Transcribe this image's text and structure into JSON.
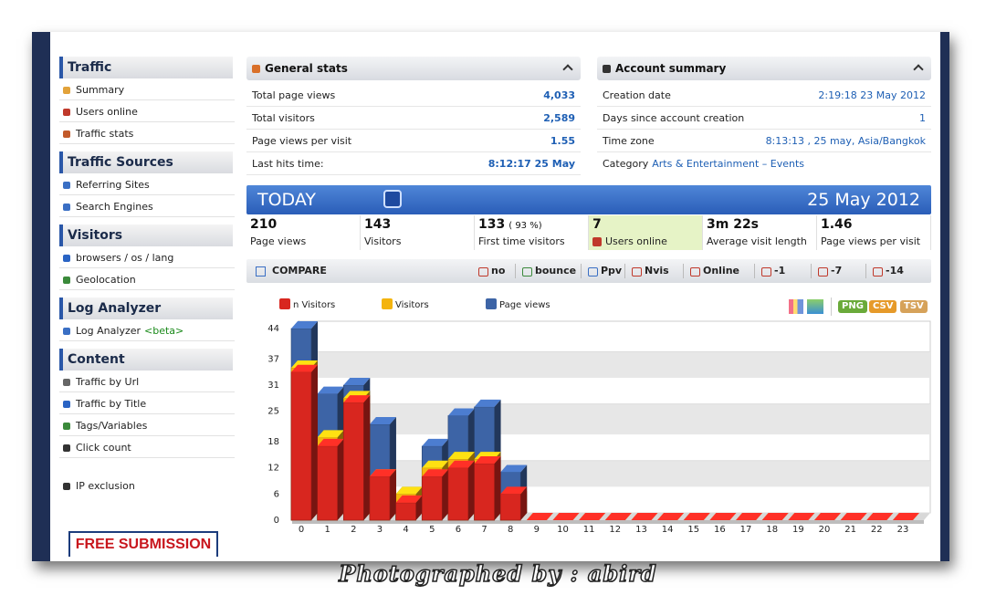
{
  "sidebar": {
    "sections": [
      {
        "title": "Traffic",
        "items": [
          "Summary",
          "Users online",
          "Traffic stats"
        ]
      },
      {
        "title": "Traffic Sources",
        "items": [
          "Referring Sites",
          "Search Engines"
        ]
      },
      {
        "title": "Visitors",
        "items": [
          "browsers / os / lang",
          "Geolocation"
        ]
      },
      {
        "title": "Log Analyzer",
        "items": [
          "Log Analyzer"
        ],
        "badge": "<beta>"
      },
      {
        "title": "Content",
        "items": [
          "Traffic by Url",
          "Traffic by Title",
          "Tags/Variables",
          "Click count"
        ]
      }
    ],
    "extra": "IP exclusion",
    "banner": "FREE SUBMISSION"
  },
  "general_stats": {
    "title": "General stats",
    "rows": [
      [
        "Total page views",
        "4,033"
      ],
      [
        "Total visitors",
        "2,589"
      ],
      [
        "Page views per visit",
        "1.55"
      ],
      [
        "Last hits time:",
        "8:12:17 25 May"
      ]
    ]
  },
  "account_summary": {
    "title": "Account summary",
    "rows": [
      [
        "Creation date",
        "2:19:18 23 May 2012"
      ],
      [
        "Days since account creation",
        "1"
      ],
      [
        "Time zone",
        "8:13:13 , 25 may, Asia/Bangkok"
      ]
    ],
    "category": {
      "label": "Category",
      "value": "Arts & Entertainment – Events"
    }
  },
  "today": {
    "title": "TODAY",
    "date": "25 May 2012",
    "stats": [
      {
        "value": "210",
        "label": "Page views"
      },
      {
        "value": "143",
        "label": "Visitors"
      },
      {
        "value": "133",
        "note": "( 93 %)",
        "label": "First time visitors"
      },
      {
        "value": "7",
        "label": "Users online"
      },
      {
        "value": "3m 22s",
        "label": "Average visit length"
      },
      {
        "value": "1.46",
        "label": "Page views per visit"
      }
    ]
  },
  "compare": {
    "title": "COMPARE",
    "options": [
      "no",
      "bounce",
      "Ppv",
      "Nvis",
      "Online",
      "-1",
      "-7",
      "-14"
    ]
  },
  "export_buttons": [
    "PNG",
    "CSV",
    "TSV"
  ],
  "chart_data": {
    "type": "bar",
    "categories": [
      "0",
      "1",
      "2",
      "3",
      "4",
      "5",
      "6",
      "7",
      "8",
      "9",
      "10",
      "11",
      "12",
      "13",
      "14",
      "15",
      "16",
      "17",
      "18",
      "19",
      "20",
      "21",
      "22",
      "23"
    ],
    "series": [
      {
        "name": "n Visitors",
        "color": "#d8261f",
        "values": [
          34,
          17,
          27,
          10,
          4,
          10,
          12,
          13,
          6,
          0,
          0,
          0,
          0,
          0,
          0,
          0,
          0,
          0,
          0,
          0,
          0,
          0,
          0,
          0
        ]
      },
      {
        "name": "Visitors",
        "color": "#f4b40e",
        "values": [
          35,
          19,
          28,
          10,
          6,
          12,
          14,
          14,
          5,
          0,
          0,
          0,
          0,
          0,
          0,
          0,
          0,
          0,
          0,
          0,
          0,
          0,
          0,
          0
        ]
      },
      {
        "name": "Page views",
        "color": "#3d64a6",
        "values": [
          44,
          29,
          31,
          22,
          6,
          17,
          24,
          26,
          11,
          0,
          0,
          0,
          0,
          0,
          0,
          0,
          0,
          0,
          0,
          0,
          0,
          0,
          0,
          0
        ]
      }
    ],
    "ylim": [
      0,
      44
    ],
    "yticks": [
      0,
      6,
      12,
      18,
      25,
      31,
      37,
      44
    ],
    "grid": true
  },
  "caption": "Photographed by : abird"
}
